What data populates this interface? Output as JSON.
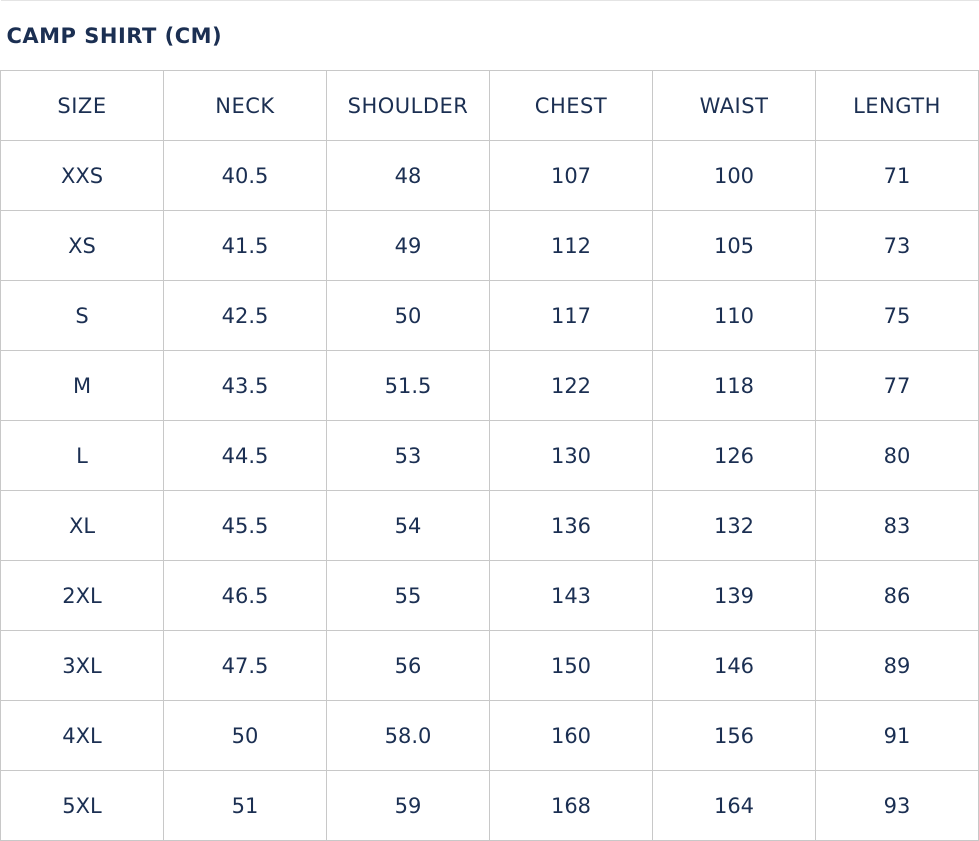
{
  "title": "CAMP SHIRT (CM)",
  "headers": [
    "SIZE",
    "NECK",
    "SHOULDER",
    "CHEST",
    "WAIST",
    "LENGTH"
  ],
  "rows": [
    [
      "XXS",
      "40.5",
      "48",
      "107",
      "100",
      "71"
    ],
    [
      "XS",
      "41.5",
      "49",
      "112",
      "105",
      "73"
    ],
    [
      "S",
      "42.5",
      "50",
      "117",
      "110",
      "75"
    ],
    [
      "M",
      "43.5",
      "51.5",
      "122",
      "118",
      "77"
    ],
    [
      "L",
      "44.5",
      "53",
      "130",
      "126",
      "80"
    ],
    [
      "XL",
      "45.5",
      "54",
      "136",
      "132",
      "83"
    ],
    [
      "2XL",
      "46.5",
      "55",
      "143",
      "139",
      "86"
    ],
    [
      "3XL",
      "47.5",
      "56",
      "150",
      "146",
      "89"
    ],
    [
      "4XL",
      "50",
      "58.0",
      "160",
      "156",
      "91"
    ],
    [
      "5XL",
      "51",
      "59",
      "168",
      "164",
      "93"
    ]
  ]
}
